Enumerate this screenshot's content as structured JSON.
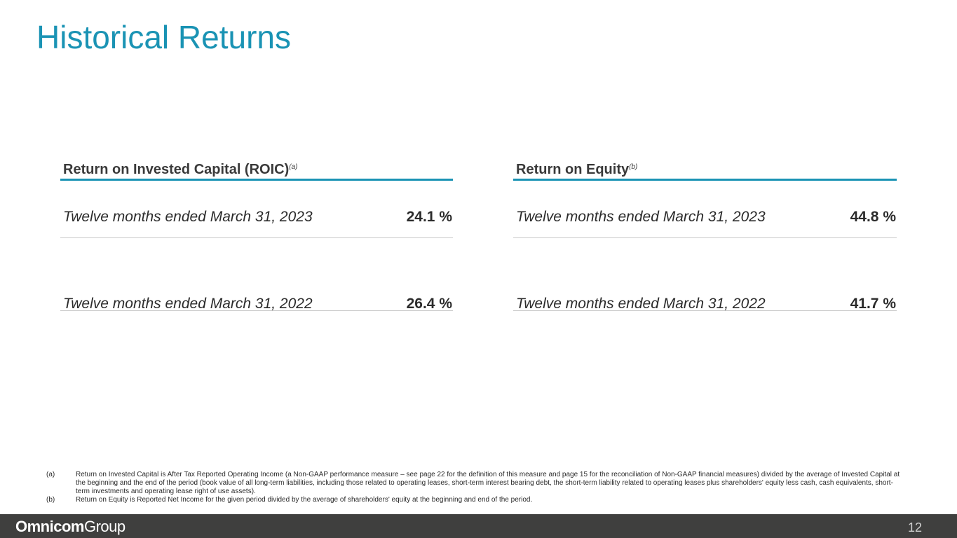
{
  "title": "Historical Returns",
  "panels": {
    "roic": {
      "header": "Return on Invested Capital (ROIC)",
      "footnote_mark": "(a)",
      "rows": [
        {
          "label": "Twelve months ended March 31, 2023",
          "value": "24.1 %"
        },
        {
          "label": "Twelve months ended March 31, 2022",
          "value": "26.4 %"
        }
      ]
    },
    "roe": {
      "header": "Return on Equity",
      "footnote_mark": "(b)",
      "rows": [
        {
          "label": "Twelve months ended March 31, 2023",
          "value": "44.8 %"
        },
        {
          "label": "Twelve months ended March 31, 2022",
          "value": "41.7 %"
        }
      ]
    }
  },
  "footnotes": [
    {
      "mark": "(a)",
      "text": "Return on Invested Capital is After Tax Reported Operating Income (a Non-GAAP performance measure – see page 22 for the definition of this measure and page 15 for the reconciliation of Non-GAAP financial measures) divided by the average of Invested Capital at the beginning and the end of the period (book value of all long-term liabilities, including those related to operating leases, short-term interest bearing debt, the short-term liability related to operating leases plus shareholders' equity less cash, cash equivalents, short-term investments and operating lease right of use assets)."
    },
    {
      "mark": "(b)",
      "text": "Return on Equity is Reported Net Income for the given period divided by the average of shareholders' equity at the beginning and end of the period."
    }
  ],
  "footer": {
    "logo_strong": "Omnicom",
    "logo_light": "Group",
    "page_number": "12"
  },
  "colors": {
    "accent": "#1a93b4",
    "footer_bg": "#3f3f3e"
  }
}
